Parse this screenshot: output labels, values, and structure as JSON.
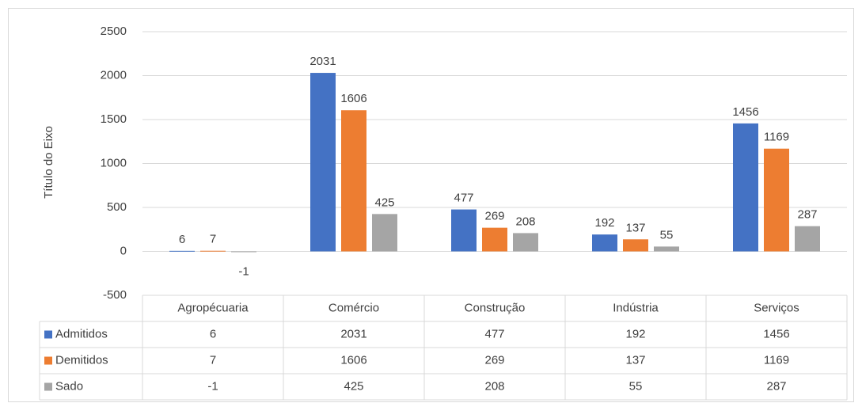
{
  "chart_data": {
    "type": "bar",
    "y_axis_label": "Título do Eixo",
    "categories": [
      "Agropécuaria",
      "Comércio",
      "Construção",
      "Indústria",
      "Serviços"
    ],
    "series": [
      {
        "name": "Admitidos",
        "color": "#4472c4",
        "values": [
          6,
          2031,
          477,
          192,
          1456
        ]
      },
      {
        "name": "Demitidos",
        "color": "#ed7d31",
        "values": [
          7,
          1606,
          269,
          137,
          1169
        ]
      },
      {
        "name": "Sado",
        "color": "#a5a5a5",
        "values": [
          -1,
          425,
          208,
          55,
          287
        ]
      }
    ],
    "ylim": [
      -500,
      2500
    ],
    "yticks": [
      -500,
      0,
      500,
      1000,
      1500,
      2000,
      2500
    ],
    "grid": true,
    "data_table": true
  }
}
